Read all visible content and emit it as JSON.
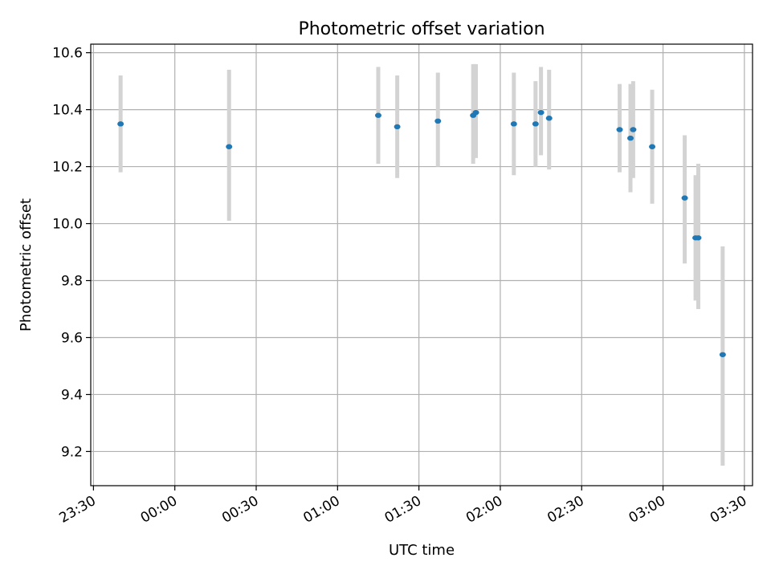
{
  "chart_data": {
    "type": "scatter",
    "title": "Photometric offset variation",
    "xlabel": "UTC time",
    "ylabel": "Photometric offset",
    "xlim": [
      "23:29",
      "03:33"
    ],
    "ylim": [
      9.08,
      10.63
    ],
    "x_ticks": [
      "23:30",
      "00:00",
      "00:30",
      "01:00",
      "01:30",
      "02:00",
      "02:30",
      "03:00",
      "03:30"
    ],
    "y_ticks": [
      "9.2",
      "9.4",
      "9.6",
      "9.8",
      "10.0",
      "10.2",
      "10.4",
      "10.6"
    ],
    "grid": true,
    "colors": {
      "point": "#1f77b4",
      "errorbar": "#d3d3d3",
      "grid": "#b0b0b0"
    },
    "series": [
      {
        "points": [
          {
            "x": "23:40",
            "y": 10.35,
            "ylow": 10.18,
            "yhigh": 10.52
          },
          {
            "x": "00:20",
            "y": 10.27,
            "ylow": 10.01,
            "yhigh": 10.54
          },
          {
            "x": "01:15",
            "y": 10.38,
            "ylow": 10.21,
            "yhigh": 10.55
          },
          {
            "x": "01:22",
            "y": 10.34,
            "ylow": 10.16,
            "yhigh": 10.52
          },
          {
            "x": "01:37",
            "y": 10.36,
            "ylow": 10.2,
            "yhigh": 10.53
          },
          {
            "x": "01:50",
            "y": 10.38,
            "ylow": 10.21,
            "yhigh": 10.56
          },
          {
            "x": "01:51",
            "y": 10.39,
            "ylow": 10.23,
            "yhigh": 10.56
          },
          {
            "x": "02:05",
            "y": 10.35,
            "ylow": 10.17,
            "yhigh": 10.53
          },
          {
            "x": "02:13",
            "y": 10.35,
            "ylow": 10.2,
            "yhigh": 10.5
          },
          {
            "x": "02:15",
            "y": 10.39,
            "ylow": 10.24,
            "yhigh": 10.55
          },
          {
            "x": "02:18",
            "y": 10.37,
            "ylow": 10.19,
            "yhigh": 10.54
          },
          {
            "x": "02:44",
            "y": 10.33,
            "ylow": 10.18,
            "yhigh": 10.49
          },
          {
            "x": "02:48",
            "y": 10.3,
            "ylow": 10.11,
            "yhigh": 10.49
          },
          {
            "x": "02:49",
            "y": 10.33,
            "ylow": 10.16,
            "yhigh": 10.5
          },
          {
            "x": "02:56",
            "y": 10.27,
            "ylow": 10.07,
            "yhigh": 10.47
          },
          {
            "x": "03:08",
            "y": 10.09,
            "ylow": 9.86,
            "yhigh": 10.31
          },
          {
            "x": "03:12",
            "y": 9.95,
            "ylow": 9.73,
            "yhigh": 10.17
          },
          {
            "x": "03:13",
            "y": 9.95,
            "ylow": 9.7,
            "yhigh": 10.21
          },
          {
            "x": "03:22",
            "y": 9.54,
            "ylow": 9.15,
            "yhigh": 9.92
          }
        ]
      }
    ]
  }
}
